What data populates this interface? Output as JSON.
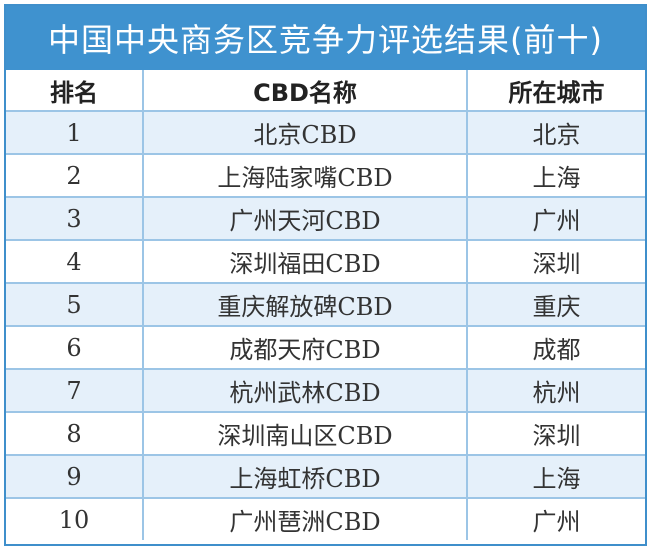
{
  "title": "中国中央商务区竞争力评选结果(前十)",
  "headers": {
    "rank": "排名",
    "name": "CBD名称",
    "city": "所在城市"
  },
  "rows": [
    {
      "rank": "1",
      "name": "北京CBD",
      "city": "北京"
    },
    {
      "rank": "2",
      "name": "上海陆家嘴CBD",
      "city": "上海"
    },
    {
      "rank": "3",
      "name": "广州天河CBD",
      "city": "广州"
    },
    {
      "rank": "4",
      "name": "深圳福田CBD",
      "city": "深圳"
    },
    {
      "rank": "5",
      "name": "重庆解放碑CBD",
      "city": "重庆"
    },
    {
      "rank": "6",
      "name": "成都天府CBD",
      "city": "成都"
    },
    {
      "rank": "7",
      "name": "杭州武林CBD",
      "city": "杭州"
    },
    {
      "rank": "8",
      "name": "深圳南山区CBD",
      "city": "深圳"
    },
    {
      "rank": "9",
      "name": "上海虹桥CBD",
      "city": "上海"
    },
    {
      "rank": "10",
      "name": "广州琶洲CBD",
      "city": "广州"
    }
  ],
  "colors": {
    "title_bg": "#3f92cf",
    "stripe": "#e5f0fa",
    "grid": "#9cc5e6"
  }
}
